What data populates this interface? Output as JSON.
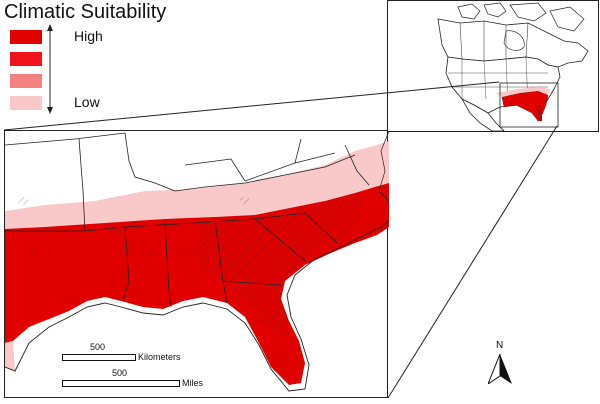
{
  "legend": {
    "title": "Climatic Suitability",
    "high_label": "High",
    "low_label": "Low",
    "classes": [
      "#e00000",
      "#f0141a",
      "#f58080",
      "#f9c8c8"
    ]
  },
  "scale_bars": {
    "km": {
      "value": "500",
      "unit": "Kilometers"
    },
    "miles": {
      "value": "500",
      "unit": "Miles"
    }
  },
  "north_arrow": {
    "label": "N"
  },
  "colors": {
    "high": "#e00000",
    "medium_low": "#f58080",
    "low": "#f9c8c8",
    "outside": "#ffffff",
    "borders": "#222222"
  }
}
